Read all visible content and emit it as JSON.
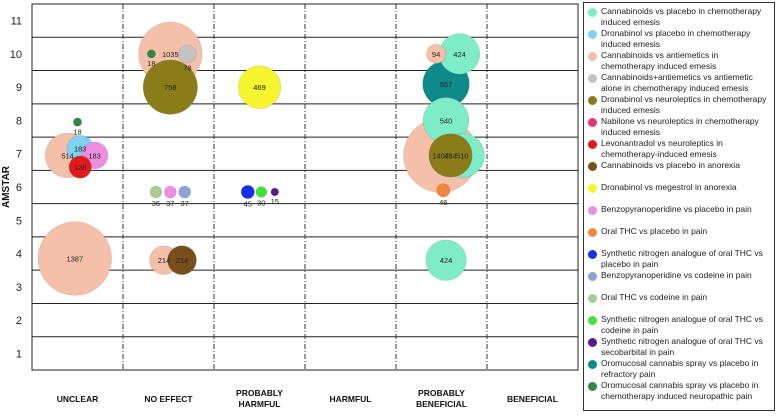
{
  "chart_data": {
    "type": "scatter",
    "subtype": "bubble",
    "ylabel": "AMSTAR",
    "yticks": [
      1,
      2,
      3,
      4,
      5,
      6,
      7,
      8,
      9,
      10,
      11
    ],
    "ylim": [
      0.5,
      11.5
    ],
    "categories": [
      "UNCLEAR",
      "NO EFFECT",
      "PROBABLY\nHARMFUL",
      "HARMFUL",
      "PROBABLY\nBENEFICIAL",
      "BENEFICIAL"
    ],
    "grid": true,
    "legend_position": "right",
    "series": [
      {
        "name": "Cannabinoids vs placebo in chemotherapy induced emesis",
        "color": "#7fecc8"
      },
      {
        "name": "Dronabinol vs placebo in chemotherapy induced emesis",
        "color": "#7dd3f0"
      },
      {
        "name": "Cannabinoids vs antiemetics in chemotherapy induced emesis",
        "color": "#f4c0aa"
      },
      {
        "name": "Cannabinoids+antiemetics vs antiemetic alone in chemotherapy induced emesis",
        "color": "#c4c4c4"
      },
      {
        "name": "Dronabinol vs neuroleptics in chemotherapy induced emesis",
        "color": "#8a7d17"
      },
      {
        "name": "Nabilone vs neuroleptics in chemotherapy induced emesis",
        "color": "#e4357c"
      },
      {
        "name": "Levonantradol vs neuroleptics in chemotherapy-induced emesis",
        "color": "#e31a1c"
      },
      {
        "name": "Cannabinoids vs placebo in anorexia",
        "color": "#7a4e1a"
      },
      {
        "name": "Dronabinol vs megestrol in anorexia",
        "color": "#f6f52f"
      },
      {
        "name": "Benzopyranoperidine vs placebo in pain",
        "color": "#ee8ee0"
      },
      {
        "name": "Oral THC vs placebo in pain",
        "color": "#ee8a3a"
      },
      {
        "name": "Synthetic nitrogen analogue of oral THC vs placebo in pain",
        "color": "#1530e8"
      },
      {
        "name": "Benzopyranoperidine vs codeine in pain",
        "color": "#8ea2d6"
      },
      {
        "name": "Oral THC vs codeine in pain",
        "color": "#a8cc96"
      },
      {
        "name": "Synthetic nitrogen analogue of oral THC vs codeine in pain",
        "color": "#41e23a"
      },
      {
        "name": "Synthetic nitrogen analogue of oral THC vs secobarbital in pain",
        "color": "#5a1890"
      },
      {
        "name": "Oromucosal cannabis spray vs placebo in refractory pain",
        "color": "#0f8a8a"
      },
      {
        "name": "Oromucosal cannabis spray vs placebo in chemotherapy induced neuropathic pain",
        "color": "#2e8a4a"
      }
    ],
    "bubbles": [
      {
        "category": 0,
        "offset": -0.55,
        "y": 6.95,
        "size": 514,
        "label": "514",
        "series": 2
      },
      {
        "category": 0,
        "offset": 0.15,
        "y": 7.15,
        "size": 183,
        "label": "183",
        "series": 1
      },
      {
        "category": 0,
        "offset": 0.15,
        "y": 6.6,
        "size": 128,
        "label": "128",
        "series": 6
      },
      {
        "category": 0,
        "offset": 0.95,
        "y": 6.95,
        "size": 183,
        "label": "183",
        "series": 9
      },
      {
        "category": 0,
        "offset": 0.0,
        "y": 7.95,
        "size": 18,
        "label": "18",
        "series": 17,
        "label_pos": "below"
      },
      {
        "category": 0,
        "offset": -0.15,
        "y": 3.85,
        "size": 1387,
        "label": "1387",
        "series": 2
      },
      {
        "category": 1,
        "offset": -0.95,
        "y": 10.0,
        "size": 18,
        "label": "18",
        "series": 17,
        "label_pos": "below"
      },
      {
        "category": 1,
        "offset": 0.1,
        "y": 10.0,
        "size": 1035,
        "label": "1035",
        "series": 2
      },
      {
        "category": 1,
        "offset": 1.05,
        "y": 10.0,
        "size": 78,
        "label": "78",
        "series": 3,
        "label_pos": "below"
      },
      {
        "category": 1,
        "offset": 0.1,
        "y": 9.0,
        "size": 758,
        "label": "758",
        "series": 4
      },
      {
        "category": 1,
        "offset": -0.7,
        "y": 5.85,
        "size": 36,
        "label": "36",
        "series": 13,
        "label_pos": "below"
      },
      {
        "category": 1,
        "offset": 0.1,
        "y": 5.85,
        "size": 37,
        "label": "37",
        "series": 9,
        "label_pos": "below"
      },
      {
        "category": 1,
        "offset": 0.9,
        "y": 5.85,
        "size": 37,
        "label": "37",
        "series": 12,
        "label_pos": "below"
      },
      {
        "category": 1,
        "offset": -0.25,
        "y": 3.8,
        "size": 214,
        "label": "214",
        "series": 2
      },
      {
        "category": 1,
        "offset": 0.75,
        "y": 3.8,
        "size": 214,
        "label": "214",
        "series": 7
      },
      {
        "category": 2,
        "offset": 0.0,
        "y": 9.0,
        "size": 469,
        "label": "469",
        "series": 8
      },
      {
        "category": 2,
        "offset": -0.65,
        "y": 5.85,
        "size": 45,
        "label": "45",
        "series": 11,
        "label_pos": "below"
      },
      {
        "category": 2,
        "offset": 0.1,
        "y": 5.85,
        "size": 30,
        "label": "30",
        "series": 14,
        "label_pos": "below"
      },
      {
        "category": 2,
        "offset": 0.85,
        "y": 5.85,
        "size": 15,
        "label": "15",
        "series": 15,
        "label_pos": "below"
      },
      {
        "category": 4,
        "offset": -0.3,
        "y": 10.0,
        "size": 94,
        "label": "94",
        "series": 2
      },
      {
        "category": 4,
        "offset": 1.0,
        "y": 10.0,
        "size": 424,
        "label": "424",
        "series": 0
      },
      {
        "category": 4,
        "offset": 0.25,
        "y": 9.1,
        "size": 557,
        "label": "557",
        "series": 16
      },
      {
        "category": 4,
        "offset": 0.25,
        "y": 8.0,
        "size": 540,
        "label": "540",
        "series": 0
      },
      {
        "category": 4,
        "offset": 1.15,
        "y": 6.95,
        "size": 510,
        "label": "510",
        "series": 0
      },
      {
        "category": 4,
        "offset": -0.05,
        "y": 6.95,
        "size": 1407,
        "label": "1407",
        "series": 2
      },
      {
        "category": 4,
        "offset": 0.5,
        "y": 6.95,
        "size": 484,
        "label": "484",
        "series": 4
      },
      {
        "category": 4,
        "offset": 0.1,
        "y": 5.9,
        "size": 46,
        "label": "46",
        "series": 10,
        "label_pos": "below"
      },
      {
        "category": 4,
        "offset": 0.25,
        "y": 3.8,
        "size": 424,
        "label": "424",
        "series": 0
      }
    ]
  }
}
